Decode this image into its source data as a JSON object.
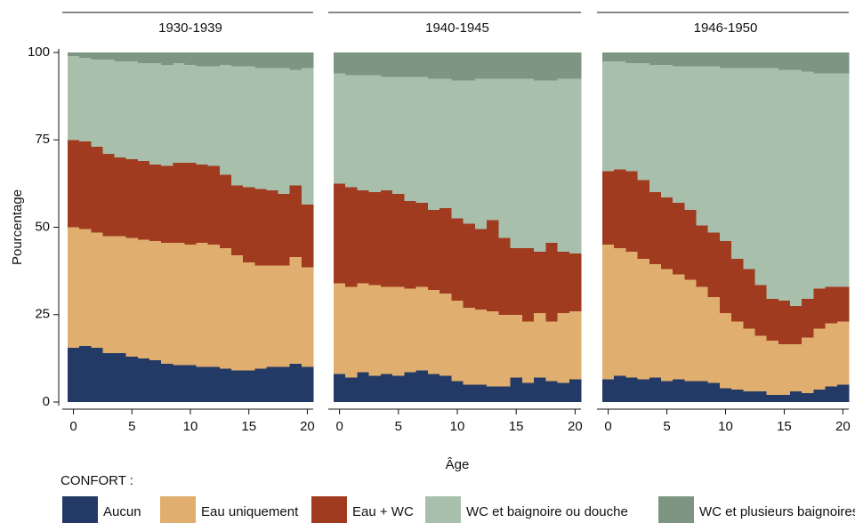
{
  "chart_data": [
    {
      "type": "step-area",
      "title": "1930-1939",
      "ylabel": "Pourcentage",
      "legend_title": "CONFORT :",
      "x": [
        0,
        1,
        2,
        3,
        4,
        5,
        6,
        7,
        8,
        9,
        10,
        11,
        12,
        13,
        14,
        15,
        16,
        17,
        18,
        19,
        20
      ],
      "xlim": [
        -0.5,
        20.5
      ],
      "xticks": [
        0,
        5,
        10,
        15,
        20
      ],
      "ylim": [
        0,
        100
      ],
      "yticks": [
        0,
        25,
        50,
        75,
        100
      ],
      "series": [
        {
          "name": "Aucun",
          "color": "#243a66",
          "values": [
            15.5,
            16,
            15.5,
            14,
            14,
            13,
            12.5,
            12,
            11,
            10.5,
            10.5,
            10,
            10,
            9.5,
            9,
            9,
            9.5,
            10,
            10,
            11,
            10
          ]
        },
        {
          "name": "Eau uniquement",
          "color": "#e0ae6e",
          "values": [
            34.5,
            33.5,
            33,
            33.5,
            33.5,
            34,
            34,
            34,
            34.5,
            35,
            34.5,
            35.5,
            35,
            34.5,
            33,
            31,
            29.5,
            29,
            29,
            30.5,
            28.5
          ]
        },
        {
          "name": "Eau + WC",
          "color": "#a13b20",
          "values": [
            25,
            25,
            24.5,
            23.5,
            22.5,
            22.5,
            22.5,
            22,
            22,
            23,
            23.5,
            22.5,
            22.5,
            21,
            20,
            21.5,
            22,
            21.5,
            20.5,
            20.5,
            18
          ]
        },
        {
          "name": "WC et baignoire ou douche",
          "color": "#a8bfac",
          "values": [
            24,
            24,
            25,
            27,
            27.5,
            28,
            28,
            29,
            29,
            28.5,
            28,
            28,
            28.5,
            31.5,
            34,
            34.5,
            34.5,
            35,
            36,
            33,
            39
          ]
        },
        {
          "name": "WC et plusieurs baignoires",
          "color": "#7d9682",
          "values": [
            1,
            1.5,
            2,
            2,
            2.5,
            2.5,
            3,
            3,
            3.5,
            3,
            3.5,
            4,
            4,
            3.5,
            4,
            4,
            4.5,
            4.5,
            4.5,
            5,
            4.5
          ]
        }
      ]
    },
    {
      "type": "step-area",
      "title": "1940-1945",
      "xlabel": "Âge",
      "x": [
        0,
        1,
        2,
        3,
        4,
        5,
        6,
        7,
        8,
        9,
        10,
        11,
        12,
        13,
        14,
        15,
        16,
        17,
        18,
        19,
        20
      ],
      "xlim": [
        -0.5,
        20.5
      ],
      "xticks": [
        0,
        5,
        10,
        15,
        20
      ],
      "ylim": [
        0,
        100
      ],
      "series": [
        {
          "name": "Aucun",
          "color": "#243a66",
          "values": [
            8,
            7,
            8.5,
            7.5,
            8,
            7.5,
            8.5,
            9,
            8,
            7.5,
            6,
            5,
            5,
            4.5,
            4.5,
            7,
            5.5,
            7,
            6,
            5.5,
            6.5
          ]
        },
        {
          "name": "Eau uniquement",
          "color": "#e0ae6e",
          "values": [
            26,
            26,
            25.5,
            26,
            25,
            25.5,
            24,
            24,
            24,
            23.5,
            23,
            22,
            21.5,
            21.5,
            20.5,
            18,
            17.5,
            18.5,
            17,
            20,
            19.5
          ]
        },
        {
          "name": "Eau + WC",
          "color": "#a13b20",
          "values": [
            28.5,
            28.5,
            26.5,
            26.5,
            27.5,
            26.5,
            25,
            24,
            23,
            24.5,
            23.5,
            24,
            23,
            26,
            22,
            19,
            21,
            17.5,
            22.5,
            17.5,
            16.5
          ]
        },
        {
          "name": "WC et baignoire ou douche",
          "color": "#a8bfac",
          "values": [
            31.5,
            32,
            33,
            33.5,
            32.5,
            33.5,
            35.5,
            36,
            37.5,
            37,
            39.5,
            41,
            43,
            40.5,
            45.5,
            48.5,
            48.5,
            49,
            46.5,
            49.5,
            50
          ]
        },
        {
          "name": "WC et plusieurs baignoires",
          "color": "#7d9682",
          "values": [
            6,
            6.5,
            6.5,
            6.5,
            7,
            7,
            7,
            7,
            7.5,
            7.5,
            8,
            8,
            7.5,
            7.5,
            7.5,
            7.5,
            7.5,
            8,
            8,
            7.5,
            7.5
          ]
        }
      ]
    },
    {
      "type": "step-area",
      "title": "1946-1950",
      "x": [
        0,
        1,
        2,
        3,
        4,
        5,
        6,
        7,
        8,
        9,
        10,
        11,
        12,
        13,
        14,
        15,
        16,
        17,
        18,
        19,
        20
      ],
      "xlim": [
        -0.5,
        20.5
      ],
      "xticks": [
        0,
        5,
        10,
        15,
        20
      ],
      "ylim": [
        0,
        100
      ],
      "series": [
        {
          "name": "Aucun",
          "color": "#243a66",
          "values": [
            6.5,
            7.5,
            7,
            6.5,
            7,
            6,
            6.5,
            6,
            6,
            5.5,
            4,
            3.5,
            3,
            3,
            2,
            2,
            3,
            2.5,
            3.5,
            4.5,
            5
          ]
        },
        {
          "name": "Eau uniquement",
          "color": "#e0ae6e",
          "values": [
            38.5,
            36.5,
            36,
            34.5,
            32.5,
            32,
            30,
            29,
            27,
            24.5,
            21.5,
            19.5,
            18,
            16,
            15.5,
            14.5,
            13.5,
            16,
            17.5,
            18,
            18
          ]
        },
        {
          "name": "Eau + WC",
          "color": "#a13b20",
          "values": [
            21,
            22.5,
            23,
            22.5,
            20.5,
            20.5,
            20.5,
            20,
            17.5,
            18.5,
            20.5,
            18,
            17,
            14.5,
            12,
            12.5,
            11,
            11,
            11.5,
            10.5,
            10
          ]
        },
        {
          "name": "WC et baignoire ou douche",
          "color": "#a8bfac",
          "values": [
            31.5,
            31,
            31,
            33.5,
            36.5,
            38,
            39,
            41,
            45.5,
            47.5,
            49.5,
            54.5,
            57.5,
            62,
            66,
            66,
            67.5,
            65,
            61.5,
            61,
            61
          ]
        },
        {
          "name": "WC et plusieurs baignoires",
          "color": "#7d9682",
          "values": [
            2.5,
            2.5,
            3,
            3,
            3.5,
            3.5,
            4,
            4,
            4,
            4,
            4.5,
            4.5,
            4.5,
            4.5,
            4.5,
            5,
            5,
            5.5,
            6,
            6,
            6
          ]
        }
      ]
    }
  ]
}
